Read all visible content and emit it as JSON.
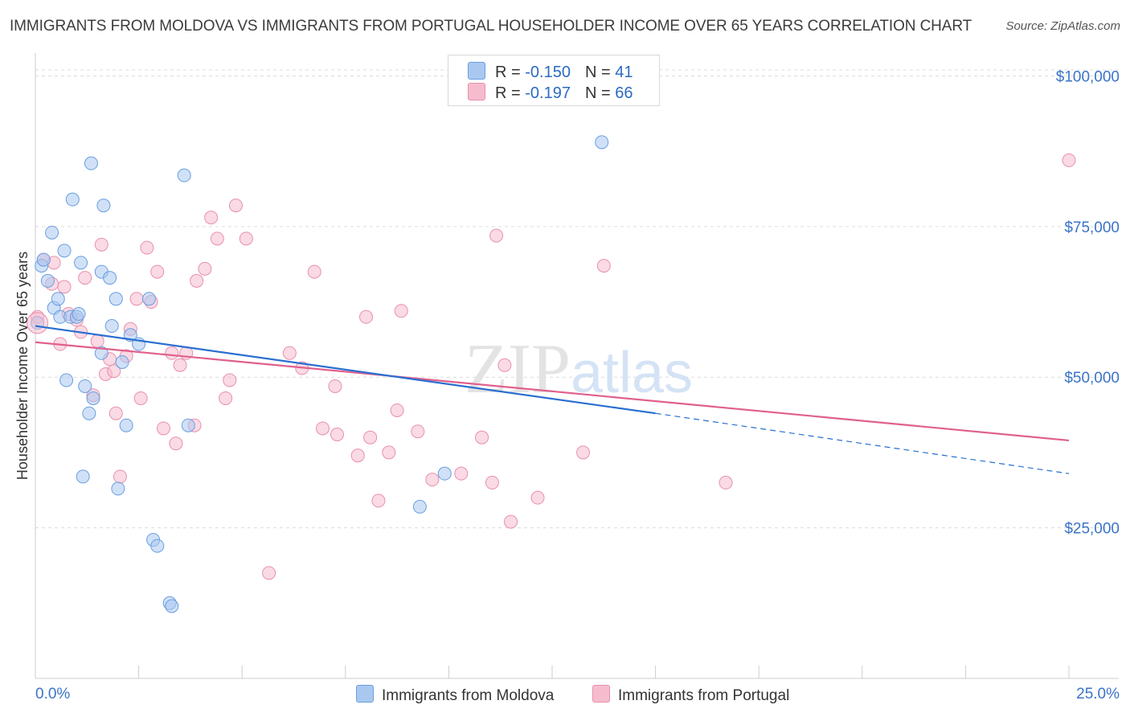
{
  "header": {
    "title": "IMMIGRANTS FROM MOLDOVA VS IMMIGRANTS FROM PORTUGAL HOUSEHOLDER INCOME OVER 65 YEARS CORRELATION CHART",
    "source": "Source: ZipAtlas.com"
  },
  "legend": {
    "rows": [
      {
        "r_label": "R =",
        "r_value": "-0.150",
        "n_label": "N =",
        "n_value": "41"
      },
      {
        "r_label": "R =",
        "r_value": "-0.197",
        "n_label": "N =",
        "n_value": "66"
      }
    ],
    "bottom": [
      "Immigrants from Moldova",
      "Immigrants from Portugal"
    ]
  },
  "watermark": {
    "zip": "ZIP",
    "atlas": "atlas"
  },
  "colors": {
    "moldova_fill": "#a9c8f0",
    "moldova_stroke": "#6a9ee0",
    "moldova_line": "#2a6fd0",
    "portugal_fill": "#f6bccd",
    "portugal_stroke": "#e890ad",
    "portugal_line": "#e0608d",
    "axis_text": "#3a74c8",
    "grid": "#dcdcdc"
  },
  "chart_data": {
    "type": "scatter",
    "title": "IMMIGRANTS FROM MOLDOVA VS IMMIGRANTS FROM PORTUGAL HOUSEHOLDER INCOME OVER 65 YEARS CORRELATION CHART",
    "xlabel": "",
    "ylabel": "Householder Income Over 65 years",
    "xlim": [
      0,
      25
    ],
    "ylim": [
      0,
      103000
    ],
    "x_tick_labels": [
      "0.0%",
      "25.0%"
    ],
    "y_ticks": [
      25000,
      50000,
      75000,
      100000
    ],
    "y_tick_labels": [
      "$25,000",
      "$50,000",
      "$75,000",
      "$100,000"
    ],
    "grid": true,
    "series": [
      {
        "name": "Immigrants from Moldova",
        "points": [
          [
            0.05,
            59000
          ],
          [
            0.15,
            68500
          ],
          [
            0.2,
            69500
          ],
          [
            0.3,
            66000
          ],
          [
            0.4,
            74000
          ],
          [
            0.45,
            61500
          ],
          [
            0.55,
            63000
          ],
          [
            0.6,
            60000
          ],
          [
            0.7,
            71000
          ],
          [
            0.75,
            49500
          ],
          [
            0.85,
            60000
          ],
          [
            0.9,
            79500
          ],
          [
            1.0,
            60000
          ],
          [
            1.05,
            60500
          ],
          [
            1.1,
            69000
          ],
          [
            1.15,
            33500
          ],
          [
            1.2,
            48500
          ],
          [
            1.3,
            44000
          ],
          [
            1.35,
            85500
          ],
          [
            1.4,
            46500
          ],
          [
            1.6,
            67500
          ],
          [
            1.6,
            54000
          ],
          [
            1.65,
            78500
          ],
          [
            1.8,
            66500
          ],
          [
            1.85,
            58500
          ],
          [
            1.95,
            63000
          ],
          [
            2.0,
            31500
          ],
          [
            2.1,
            52500
          ],
          [
            2.2,
            42000
          ],
          [
            2.3,
            57000
          ],
          [
            2.5,
            55500
          ],
          [
            2.75,
            63000
          ],
          [
            2.85,
            23000
          ],
          [
            2.95,
            22000
          ],
          [
            3.25,
            12500
          ],
          [
            3.6,
            83500
          ],
          [
            3.7,
            42000
          ],
          [
            9.3,
            28500
          ],
          [
            9.9,
            34000
          ],
          [
            13.7,
            89000
          ],
          [
            3.3,
            12000
          ]
        ],
        "trend": {
          "x": [
            0,
            15
          ],
          "y": [
            58500,
            44000
          ],
          "dashed_to": [
            25,
            34000
          ]
        }
      },
      {
        "name": "Immigrants from Portugal",
        "points": [
          [
            0.05,
            60000
          ],
          [
            0.2,
            69500
          ],
          [
            0.4,
            65500
          ],
          [
            0.45,
            69000
          ],
          [
            0.6,
            55500
          ],
          [
            0.7,
            65000
          ],
          [
            0.8,
            60500
          ],
          [
            1.0,
            59500
          ],
          [
            1.1,
            57500
          ],
          [
            1.2,
            66500
          ],
          [
            1.4,
            47000
          ],
          [
            1.5,
            56000
          ],
          [
            1.6,
            72000
          ],
          [
            1.7,
            50500
          ],
          [
            1.8,
            53000
          ],
          [
            1.9,
            51000
          ],
          [
            1.95,
            44000
          ],
          [
            2.05,
            33500
          ],
          [
            2.2,
            53500
          ],
          [
            2.3,
            58000
          ],
          [
            2.45,
            63000
          ],
          [
            2.55,
            46500
          ],
          [
            2.7,
            71500
          ],
          [
            2.8,
            62500
          ],
          [
            2.95,
            67500
          ],
          [
            3.1,
            41500
          ],
          [
            3.3,
            54000
          ],
          [
            3.4,
            39000
          ],
          [
            3.5,
            52000
          ],
          [
            3.65,
            54000
          ],
          [
            3.85,
            42000
          ],
          [
            3.9,
            66000
          ],
          [
            4.1,
            68000
          ],
          [
            4.25,
            76500
          ],
          [
            4.4,
            73000
          ],
          [
            4.6,
            46500
          ],
          [
            4.7,
            49500
          ],
          [
            4.85,
            78500
          ],
          [
            5.1,
            73000
          ],
          [
            5.65,
            17500
          ],
          [
            6.15,
            54000
          ],
          [
            6.45,
            51500
          ],
          [
            6.75,
            67500
          ],
          [
            6.95,
            41500
          ],
          [
            7.25,
            48500
          ],
          [
            7.3,
            40500
          ],
          [
            7.8,
            37000
          ],
          [
            8.0,
            60000
          ],
          [
            8.1,
            40000
          ],
          [
            8.3,
            29500
          ],
          [
            8.55,
            37500
          ],
          [
            8.75,
            44500
          ],
          [
            8.85,
            61000
          ],
          [
            9.25,
            41000
          ],
          [
            9.6,
            33000
          ],
          [
            10.3,
            34000
          ],
          [
            10.8,
            40000
          ],
          [
            11.05,
            32500
          ],
          [
            11.15,
            73500
          ],
          [
            11.35,
            52000
          ],
          [
            11.5,
            26000
          ],
          [
            12.15,
            30000
          ],
          [
            13.25,
            37500
          ],
          [
            13.75,
            68500
          ],
          [
            16.7,
            32500
          ],
          [
            25.0,
            86000
          ]
        ],
        "trend": {
          "x": [
            0,
            25
          ],
          "y": [
            55800,
            39500
          ]
        }
      }
    ]
  }
}
